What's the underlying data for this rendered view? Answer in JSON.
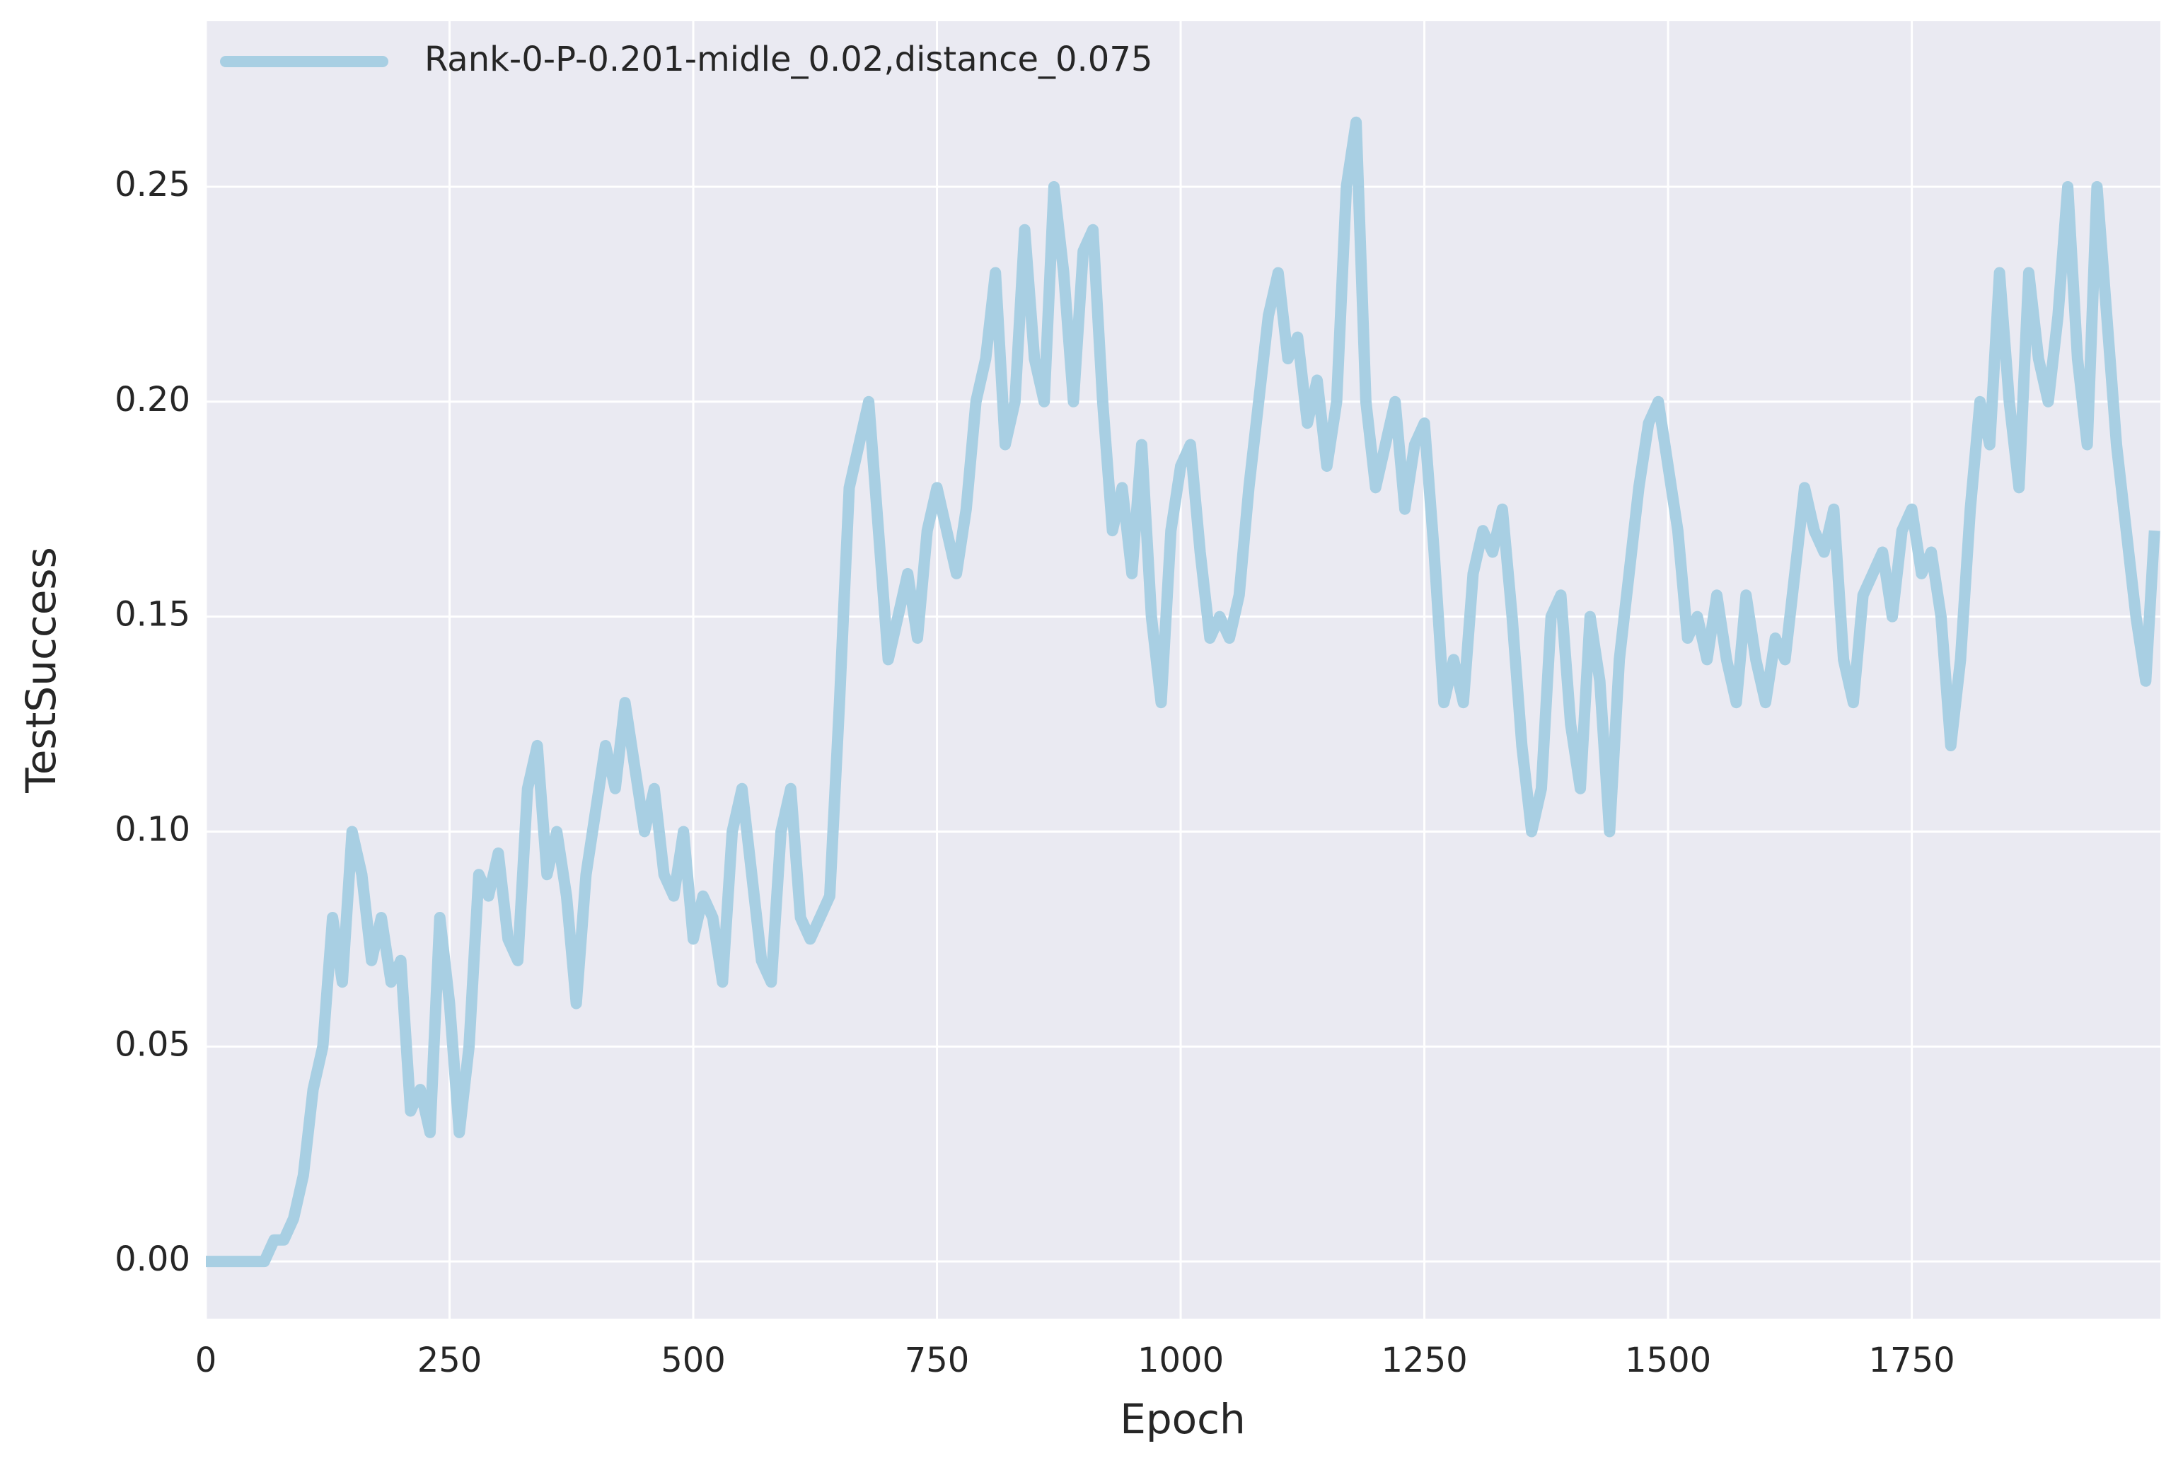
{
  "chart_data": {
    "type": "line",
    "xlabel": "Epoch",
    "ylabel": "TestSuccess",
    "xlim": [
      0,
      2005
    ],
    "ylim": [
      -0.0133,
      0.2885
    ],
    "xticks": [
      0,
      250,
      500,
      750,
      1000,
      1250,
      1500,
      1750
    ],
    "yticks": [
      {
        "value": 0,
        "label": "0.00"
      },
      {
        "value": 0.05,
        "label": "0.05"
      },
      {
        "value": 0.1,
        "label": "0.10"
      },
      {
        "value": 0.15,
        "label": "0.15"
      },
      {
        "value": 0.2,
        "label": "0.20"
      },
      {
        "value": 0.25,
        "label": "0.25"
      }
    ],
    "grid": true,
    "legend": "upper left",
    "x": [
      0,
      10,
      20,
      30,
      40,
      50,
      60,
      70,
      80,
      90,
      100,
      110,
      120,
      130,
      140,
      150,
      160,
      170,
      180,
      190,
      200,
      210,
      220,
      230,
      240,
      250,
      260,
      270,
      280,
      290,
      300,
      310,
      320,
      330,
      340,
      350,
      360,
      370,
      380,
      390,
      400,
      410,
      420,
      430,
      440,
      450,
      460,
      470,
      480,
      490,
      500,
      510,
      520,
      530,
      540,
      550,
      560,
      570,
      580,
      590,
      600,
      610,
      620,
      630,
      640,
      650,
      660,
      670,
      680,
      690,
      700,
      710,
      720,
      730,
      740,
      750,
      760,
      770,
      780,
      790,
      800,
      810,
      820,
      830,
      840,
      850,
      860,
      870,
      880,
      890,
      900,
      910,
      920,
      930,
      940,
      950,
      960,
      970,
      980,
      990,
      1000,
      1010,
      1020,
      1030,
      1040,
      1050,
      1060,
      1070,
      1080,
      1090,
      1100,
      1110,
      1120,
      1130,
      1140,
      1150,
      1160,
      1170,
      1180,
      1190,
      1200,
      1210,
      1220,
      1230,
      1240,
      1250,
      1260,
      1270,
      1280,
      1290,
      1300,
      1310,
      1320,
      1330,
      1340,
      1350,
      1360,
      1370,
      1380,
      1390,
      1400,
      1410,
      1420,
      1430,
      1440,
      1450,
      1460,
      1470,
      1480,
      1490,
      1500,
      1510,
      1520,
      1530,
      1540,
      1550,
      1560,
      1570,
      1580,
      1590,
      1600,
      1610,
      1620,
      1630,
      1640,
      1650,
      1660,
      1670,
      1680,
      1690,
      1700,
      1710,
      1720,
      1730,
      1740,
      1750,
      1760,
      1770,
      1780,
      1790,
      1800,
      1810,
      1820,
      1830,
      1840,
      1850,
      1860,
      1870,
      1880,
      1890,
      1900,
      1910,
      1920,
      1930,
      1940,
      1950,
      1960,
      1970,
      1980,
      1990,
      1999
    ],
    "series": [
      {
        "name": "Rank-0-P-0.201-midle_0.02,distance_0.075",
        "color": "#a8cfe3",
        "values": [
          0,
          0,
          0,
          0,
          0,
          0,
          0,
          0.005,
          0.005,
          0.01,
          0.02,
          0.04,
          0.05,
          0.08,
          0.065,
          0.1,
          0.09,
          0.07,
          0.08,
          0.065,
          0.07,
          0.035,
          0.04,
          0.03,
          0.08,
          0.06,
          0.03,
          0.05,
          0.09,
          0.085,
          0.095,
          0.075,
          0.07,
          0.11,
          0.12,
          0.09,
          0.1,
          0.085,
          0.06,
          0.09,
          0.105,
          0.12,
          0.11,
          0.13,
          0.115,
          0.1,
          0.11,
          0.09,
          0.085,
          0.1,
          0.075,
          0.085,
          0.08,
          0.065,
          0.1,
          0.11,
          0.09,
          0.07,
          0.065,
          0.1,
          0.11,
          0.08,
          0.075,
          0.08,
          0.085,
          0.13,
          0.18,
          0.19,
          0.2,
          0.17,
          0.14,
          0.15,
          0.16,
          0.145,
          0.17,
          0.18,
          0.17,
          0.16,
          0.175,
          0.2,
          0.21,
          0.23,
          0.19,
          0.2,
          0.24,
          0.21,
          0.2,
          0.25,
          0.23,
          0.2,
          0.235,
          0.24,
          0.2,
          0.17,
          0.18,
          0.16,
          0.19,
          0.15,
          0.13,
          0.17,
          0.185,
          0.19,
          0.165,
          0.145,
          0.15,
          0.145,
          0.155,
          0.18,
          0.2,
          0.22,
          0.23,
          0.21,
          0.215,
          0.195,
          0.205,
          0.185,
          0.2,
          0.25,
          0.265,
          0.2,
          0.18,
          0.19,
          0.2,
          0.175,
          0.19,
          0.195,
          0.165,
          0.13,
          0.14,
          0.13,
          0.16,
          0.17,
          0.165,
          0.175,
          0.15,
          0.12,
          0.1,
          0.11,
          0.15,
          0.155,
          0.125,
          0.11,
          0.15,
          0.135,
          0.1,
          0.14,
          0.16,
          0.18,
          0.195,
          0.2,
          0.185,
          0.17,
          0.145,
          0.15,
          0.14,
          0.155,
          0.14,
          0.13,
          0.155,
          0.14,
          0.13,
          0.145,
          0.14,
          0.16,
          0.18,
          0.17,
          0.165,
          0.175,
          0.14,
          0.13,
          0.155,
          0.16,
          0.165,
          0.15,
          0.17,
          0.175,
          0.16,
          0.165,
          0.15,
          0.12,
          0.14,
          0.175,
          0.2,
          0.19,
          0.23,
          0.2,
          0.18,
          0.23,
          0.21,
          0.2,
          0.22,
          0.25,
          0.21,
          0.19,
          0.25,
          0.22,
          0.19,
          0.17,
          0.15,
          0.135,
          0.17
        ]
      }
    ]
  }
}
